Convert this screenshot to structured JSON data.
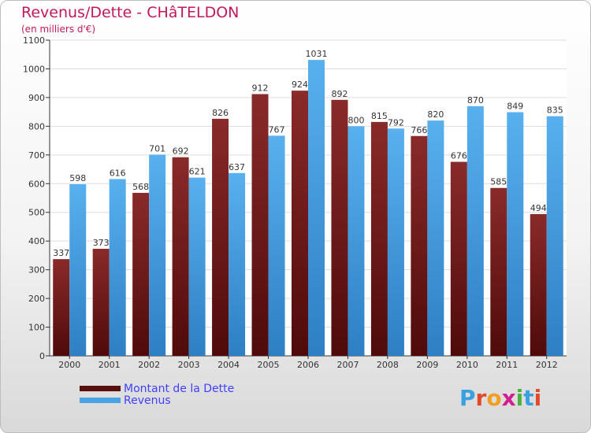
{
  "title": "Revenus/Dette - CHâTELDON",
  "subtitle": "(en milliers d'€)",
  "logo": {
    "text": "Proxiti"
  },
  "colors": {
    "dette": "#7a1c1c",
    "revenus": "#4aa3e6",
    "title": "#c2185b",
    "legend_text": "#4040ff"
  },
  "legend": {
    "dette": "Montant de la Dette",
    "revenus": "Revenus"
  },
  "chart_data": {
    "type": "bar",
    "categories": [
      "2000",
      "2001",
      "2002",
      "2003",
      "2004",
      "2005",
      "2006",
      "2007",
      "2008",
      "2009",
      "2010",
      "2011",
      "2012"
    ],
    "series": [
      {
        "name": "Montant de la Dette",
        "values": [
          337,
          373,
          568,
          692,
          826,
          912,
          924,
          892,
          815,
          766,
          676,
          585,
          494
        ]
      },
      {
        "name": "Revenus",
        "values": [
          598,
          616,
          701,
          621,
          637,
          767,
          1031,
          800,
          792,
          820,
          870,
          849,
          835
        ]
      }
    ],
    "ylim": [
      0,
      1100
    ],
    "yticks": [
      0,
      100,
      200,
      300,
      400,
      500,
      600,
      700,
      800,
      900,
      1000,
      1100
    ],
    "grid": true,
    "legend_position": "bottom-left"
  }
}
